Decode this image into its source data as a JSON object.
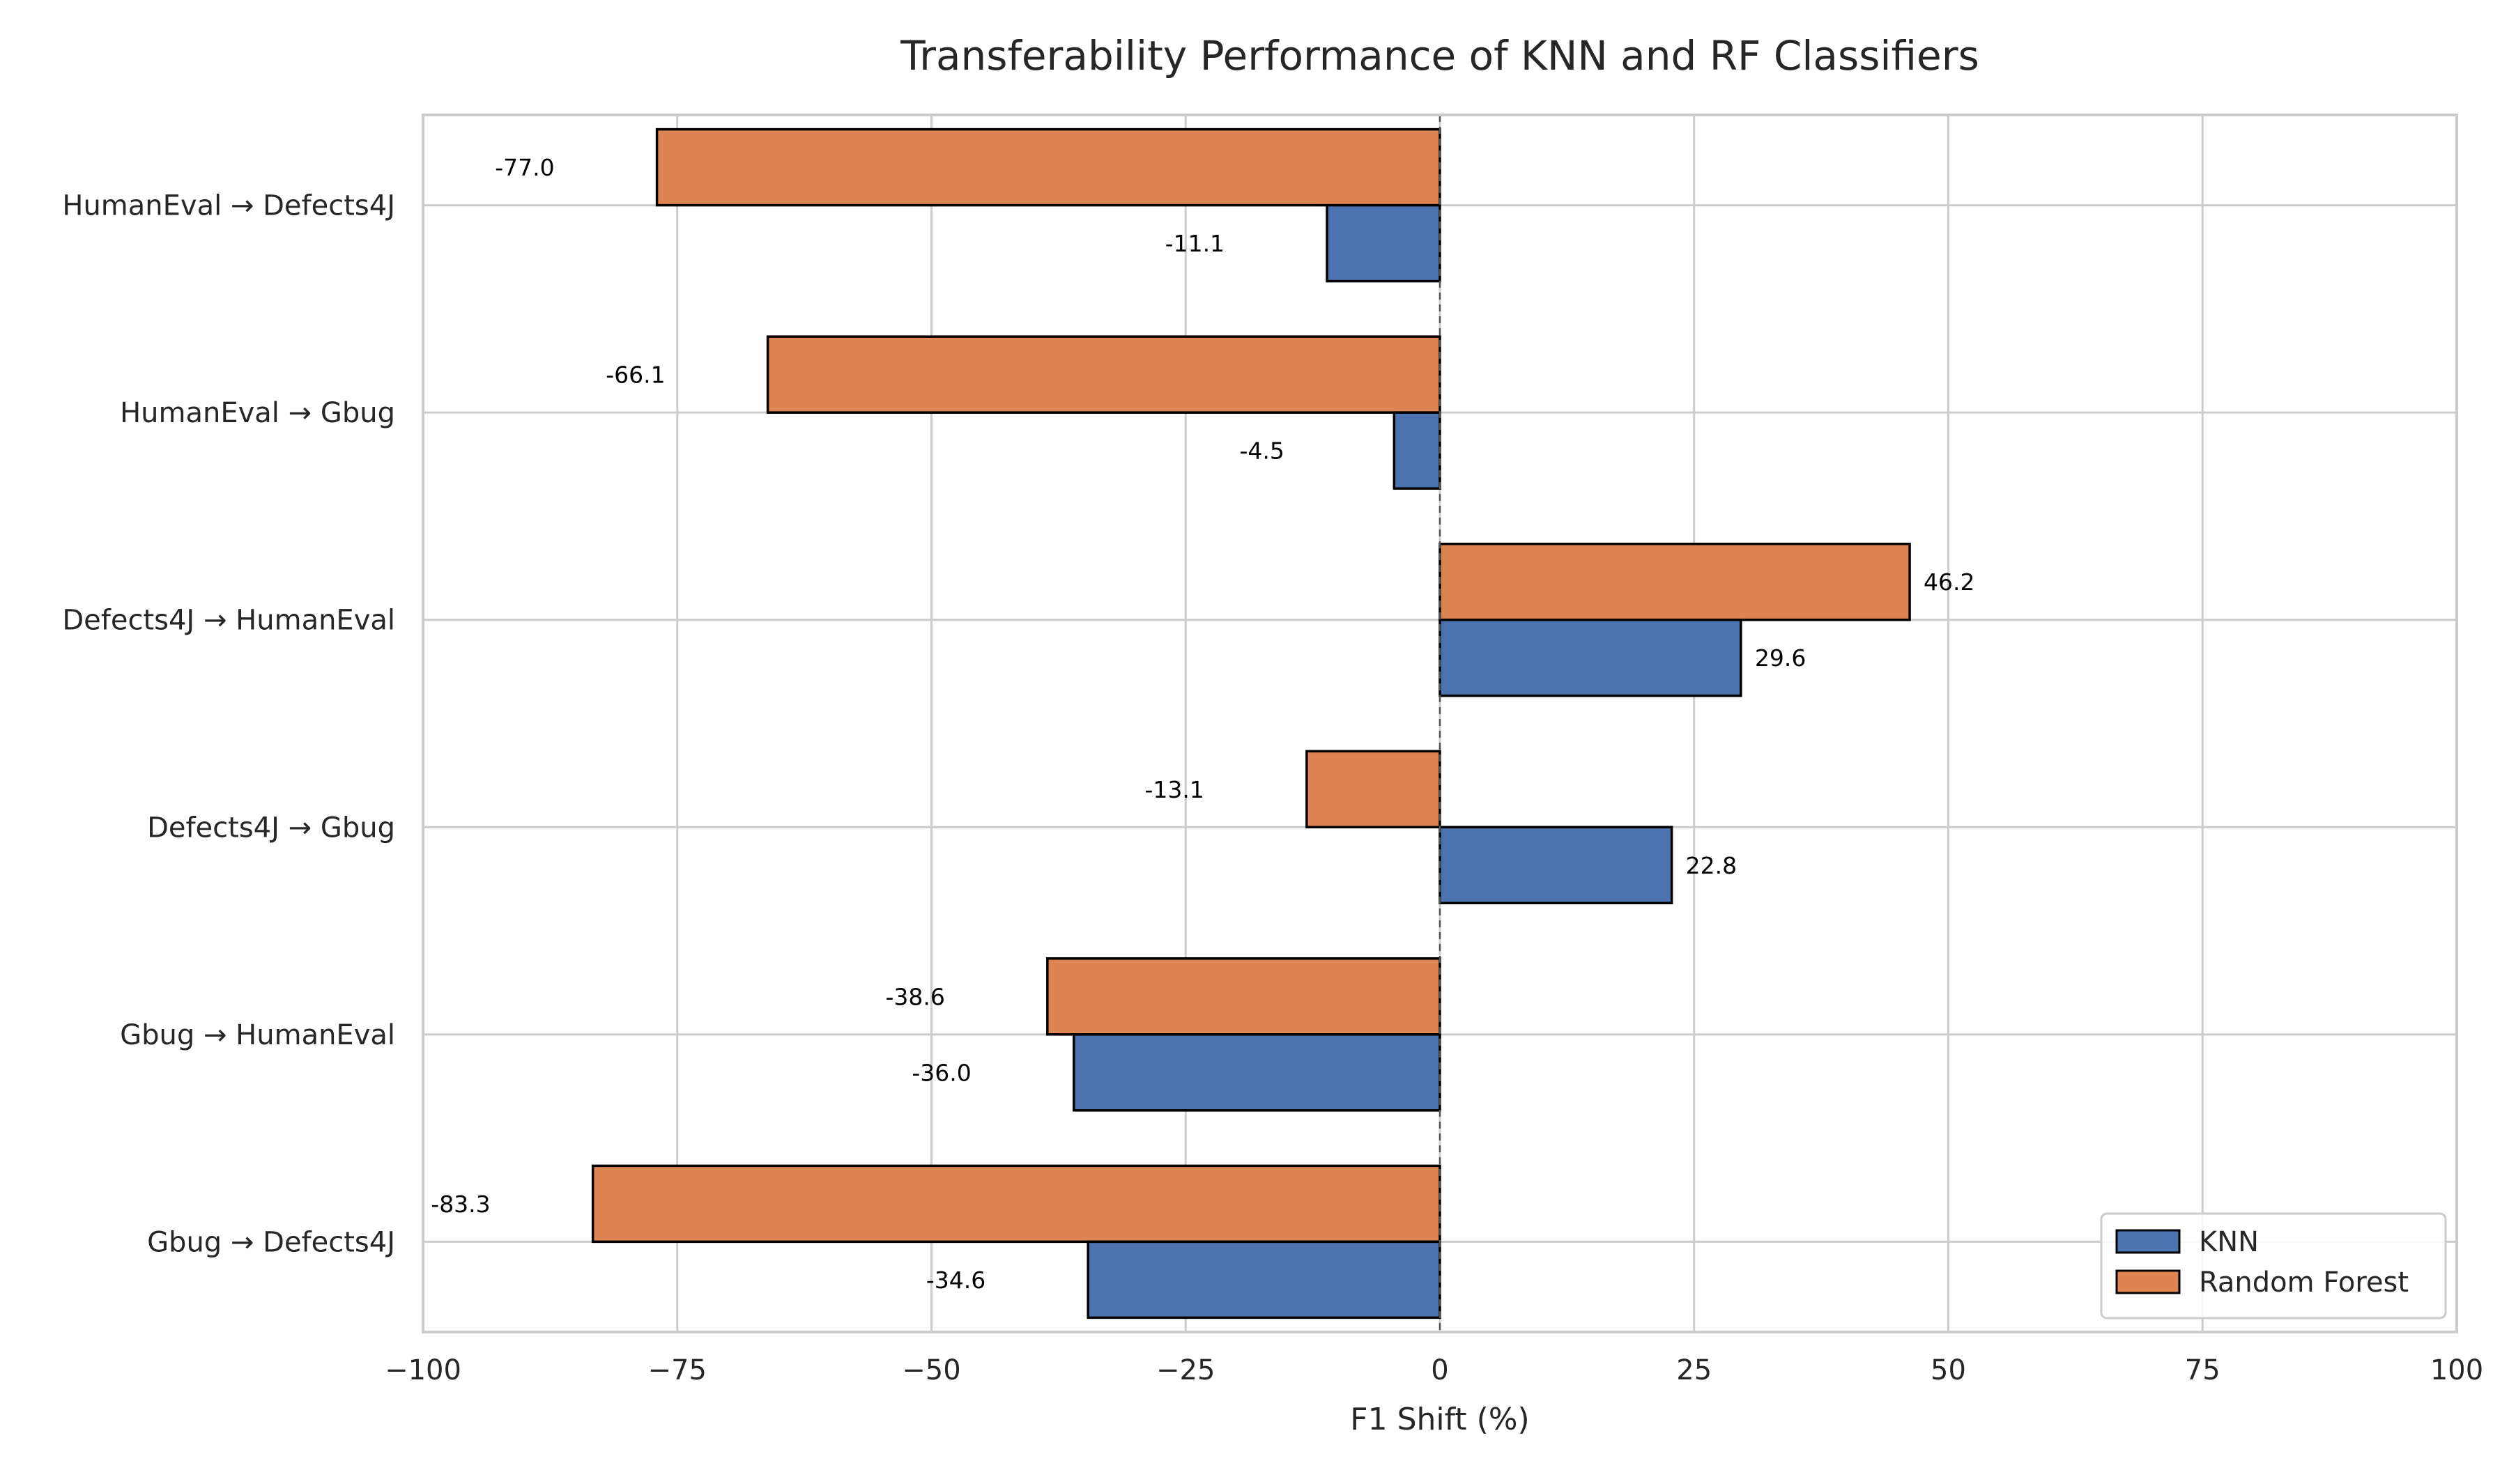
{
  "chart_data": {
    "type": "bar",
    "orientation": "horizontal",
    "title": "Transferability Performance of KNN and RF Classifiers",
    "xlabel": "F1 Shift (%)",
    "ylabel": "",
    "xlim": [
      -100,
      100
    ],
    "xticks": [
      -100,
      -75,
      -50,
      -25,
      0,
      25,
      50,
      75,
      100
    ],
    "xtick_labels": [
      "−100",
      "−75",
      "−50",
      "−25",
      "0",
      "25",
      "50",
      "75",
      "100"
    ],
    "grid": true,
    "legend_position": "lower-right",
    "zero_line": "dashed",
    "categories": [
      "HumanEval → Defects4J",
      "HumanEval → Gbug",
      "Defects4J → HumanEval",
      "Defects4J → Gbug",
      "Gbug → HumanEval",
      "Gbug → Defects4J"
    ],
    "series": [
      {
        "name": "KNN",
        "color": "#4c72b0",
        "values": [
          -11.1,
          -4.5,
          29.6,
          22.8,
          -36.0,
          -34.6
        ],
        "labels": [
          "-11.1",
          "-4.5",
          "29.6",
          "22.8",
          "-36.0",
          "-34.6"
        ]
      },
      {
        "name": "Random Forest",
        "color": "#dd8452",
        "values": [
          -77.0,
          -66.1,
          46.2,
          -13.1,
          -38.6,
          -83.3
        ],
        "labels": [
          "-77.0",
          "-66.1",
          "46.2",
          "-13.1",
          "-38.6",
          "-83.3"
        ]
      }
    ]
  }
}
